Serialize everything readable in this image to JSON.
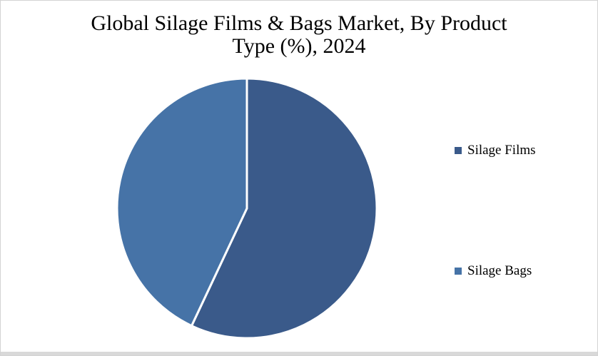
{
  "page": {
    "background_color": "#ffffff",
    "frame_border_color": "#d3d3d3",
    "bottom_strip_color": "#d9d9d9"
  },
  "chart_data": {
    "type": "pie",
    "title": "Global Silage Films & Bags Market, By Product Type (%), 2024",
    "title_lines": [
      "Global Silage Films & Bags Market, By Product",
      "Type (%), 2024"
    ],
    "categories": [
      "Silage Films",
      "Silage Bags"
    ],
    "values": [
      57,
      43
    ],
    "unit": "%",
    "year": "2024",
    "colors": [
      "#3a5a8a",
      "#4673a7"
    ],
    "slice_border_color": "#ffffff",
    "slice_border_width": 3,
    "start_angle_deg": 0,
    "direction": "clockwise",
    "legend_position": "right",
    "data_labels": false
  }
}
